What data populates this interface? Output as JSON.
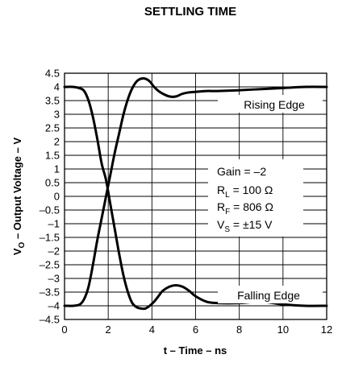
{
  "chart_data": {
    "type": "line",
    "title": "SETTLING TIME",
    "xlabel": "t – Time – ns",
    "ylabel": {
      "main": "V",
      "sub": "O",
      "rest": " – Output Voltage – V"
    },
    "xlim": [
      0,
      12
    ],
    "ylim": [
      -4.5,
      4.5
    ],
    "xticks": [
      "0",
      "2",
      "4",
      "6",
      "8",
      "10",
      "12"
    ],
    "yticks": [
      "4.5",
      "4",
      "3.5",
      "3",
      "2.5",
      "2",
      "1.5",
      "1",
      "0.5",
      "0",
      "–0.5",
      "–1",
      "–1.5",
      "–2",
      "–2.5",
      "–3",
      "–3.5",
      "–4",
      "–4.5"
    ],
    "grid": true,
    "labels": {
      "rising": "Rising Edge",
      "falling": "Falling Edge"
    },
    "conditions": {
      "gain": "Gain = –2",
      "rl_main": "R",
      "rl_sub": "L",
      "rl_rest": " = 100 Ω",
      "rf_main": "R",
      "rf_sub": "F",
      "rf_rest": " = 806 Ω",
      "vs_main": "V",
      "vs_sub": "S",
      "vs_rest": " = ±15 V"
    },
    "series": [
      {
        "x": [
          0,
          0.4,
          0.7,
          0.9,
          1.1,
          1.3,
          1.5,
          1.7,
          1.9,
          2.1,
          2.3,
          2.5,
          2.7,
          2.9,
          3.1,
          3.3,
          3.5,
          3.7,
          3.9,
          4.1,
          4.3,
          4.5,
          4.8,
          5.1,
          5.4,
          5.7,
          6.0,
          6.5,
          7.0,
          8.0,
          9.0,
          10.0,
          11.0,
          12.0
        ],
        "y": [
          4.0,
          4.0,
          3.95,
          3.85,
          3.5,
          2.9,
          2.1,
          1.2,
          0.6,
          -0.3,
          -1.2,
          -2.1,
          -2.9,
          -3.5,
          -3.9,
          -4.05,
          -4.1,
          -4.1,
          -4.0,
          -3.85,
          -3.65,
          -3.45,
          -3.3,
          -3.25,
          -3.3,
          -3.45,
          -3.65,
          -3.85,
          -3.9,
          -3.9,
          -3.85,
          -3.95,
          -4.0,
          -4.0
        ]
      },
      {
        "x": [
          0,
          0.4,
          0.7,
          0.9,
          1.1,
          1.3,
          1.5,
          1.7,
          1.9,
          2.1,
          2.3,
          2.5,
          2.7,
          2.9,
          3.1,
          3.3,
          3.5,
          3.7,
          3.9,
          4.1,
          4.3,
          4.5,
          4.8,
          5.1,
          5.4,
          5.7,
          6.0,
          6.5,
          7.0,
          8.0,
          9.0,
          10.0,
          11.0,
          12.0
        ],
        "y": [
          -4.0,
          -4.0,
          -3.95,
          -3.75,
          -3.3,
          -2.5,
          -1.6,
          -0.8,
          0.0,
          0.8,
          1.6,
          2.3,
          3.0,
          3.55,
          3.95,
          4.2,
          4.3,
          4.3,
          4.2,
          4.0,
          3.85,
          3.75,
          3.65,
          3.65,
          3.75,
          3.8,
          3.82,
          3.85,
          3.85,
          3.88,
          3.92,
          3.96,
          4.0,
          4.0
        ]
      }
    ]
  }
}
